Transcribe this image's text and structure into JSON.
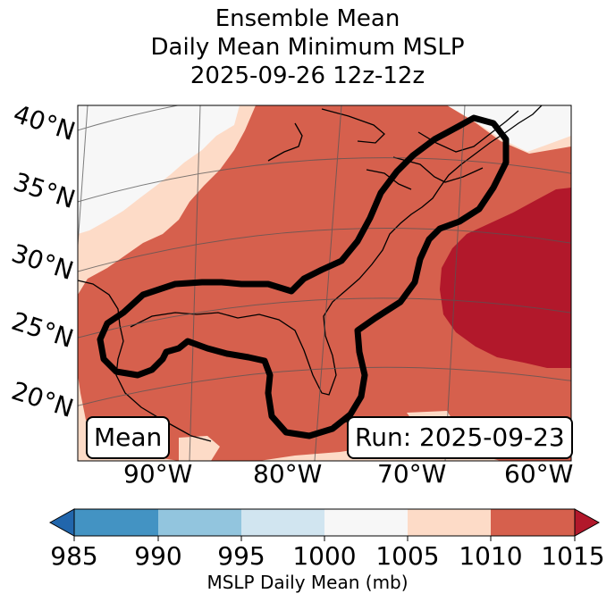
{
  "title": {
    "line1": "Ensemble Mean",
    "line2": "Daily Mean Minimum MSLP",
    "line3": "2025-09-26 12z-12z"
  },
  "map": {
    "lat_labels": [
      "40°N",
      "35°N",
      "30°N",
      "25°N",
      "20°N"
    ],
    "lon_labels": [
      "90°W",
      "80°W",
      "70°W",
      "60°W"
    ],
    "mean_box": "Mean",
    "run_box": "Run: 2025-09-23",
    "colors": {
      "1000_1005": "#f7f7f7",
      "1005_1010": "#fddbc7",
      "1010_1015": "#d6604d",
      "over_1015": "#b2182b",
      "contour": "#000000"
    }
  },
  "colorbar": {
    "label": "MSLP Daily Mean (mb)",
    "ticks": [
      "985",
      "990",
      "995",
      "1000",
      "1005",
      "1010",
      "1015"
    ],
    "colors": [
      "#4393c3",
      "#92c5de",
      "#d1e5f0",
      "#f7f7f7",
      "#fddbc7",
      "#d6604d"
    ],
    "under_color": "#2166ac",
    "over_color": "#b2182b"
  }
}
